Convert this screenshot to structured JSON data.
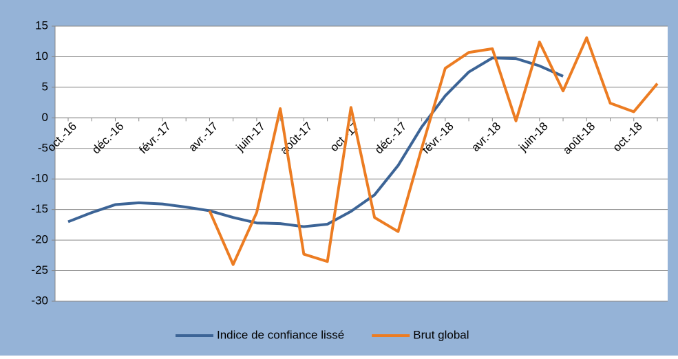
{
  "chart_data": {
    "type": "line",
    "categories": [
      "oct.-16",
      null,
      "déc.-16",
      null,
      "févr.-17",
      null,
      "avr.-17",
      null,
      "juin-17",
      null,
      "août-17",
      null,
      "oct.-17",
      null,
      "déc.-17",
      null,
      "févr.-18",
      null,
      "avr.-18",
      null,
      "juin-18",
      null,
      "août-18",
      null,
      "oct.-18",
      null
    ],
    "series": [
      {
        "name": "Indice de confiance lissé",
        "color": "#3c6496",
        "values": [
          -17,
          -15.5,
          -14.2,
          -13.9,
          -14.1,
          -14.6,
          -15.2,
          -16.3,
          -17.2,
          -17.3,
          -17.8,
          -17.4,
          -15.3,
          -12.6,
          -7.8,
          -1.5,
          3.6,
          7.5,
          9.8,
          9.7,
          8.5,
          6.8,
          null,
          null,
          null,
          null
        ]
      },
      {
        "name": "Brut global",
        "color": "#ec7c22",
        "values": [
          null,
          null,
          null,
          null,
          null,
          null,
          -15.2,
          -24,
          -15.5,
          1.5,
          -22.3,
          -23.5,
          1.7,
          -16.3,
          -18.6,
          -5,
          8.1,
          10.7,
          11.3,
          -0.5,
          12.4,
          4.4,
          13.1,
          2.4,
          1.0,
          5.6
        ]
      }
    ],
    "ylim": [
      -30,
      15
    ],
    "yticks": [
      -30,
      -25,
      -20,
      -15,
      -10,
      -5,
      0,
      5,
      10,
      15
    ],
    "grid": true,
    "legend": "bottom"
  }
}
